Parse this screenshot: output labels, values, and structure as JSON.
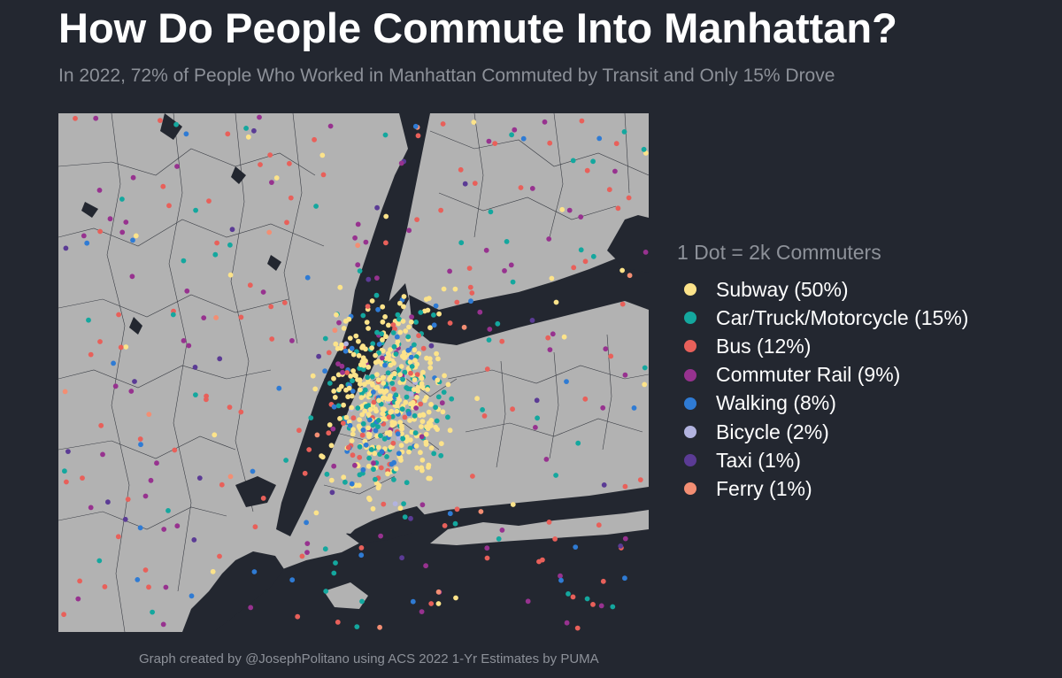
{
  "title": "How Do People Commute Into Manhattan?",
  "subtitle": "In 2022, 72% of People Who Worked in Manhattan Commuted by Transit and Only 15% Drove",
  "legend": {
    "title": "1 Dot = 2k Commuters",
    "items": [
      {
        "label": "Subway (50%)",
        "color": "#fce38a"
      },
      {
        "label": "Car/Truck/Motorcycle (15%)",
        "color": "#14a79e"
      },
      {
        "label": "Bus (12%)",
        "color": "#e8605a"
      },
      {
        "label": "Commuter Rail (9%)",
        "color": "#97328f"
      },
      {
        "label": "Walking (8%)",
        "color": "#2f7bd4"
      },
      {
        "label": "Bicycle (2%)",
        "color": "#b2b3df"
      },
      {
        "label": "Taxi (1%)",
        "color": "#5b3b95"
      },
      {
        "label": "Ferry (1%)",
        "color": "#f38e73"
      }
    ]
  },
  "caption": "Graph created by @JosephPolitano using ACS 2022 1-Yr Estimates by PUMA",
  "colors": {
    "background": "#232730",
    "land": "#b2b2b2",
    "water": "#232730"
  }
}
